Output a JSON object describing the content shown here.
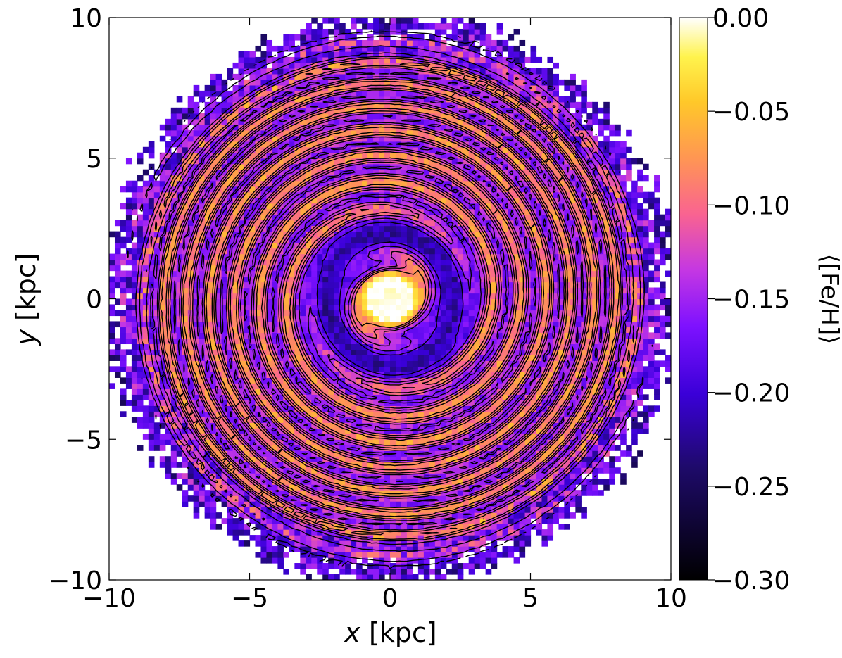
{
  "chart_data": {
    "type": "heatmap",
    "title": "",
    "xlabel_italic": "x",
    "xlabel_unit": " [kpc]",
    "ylabel_italic": "y",
    "ylabel_unit": " [kpc]",
    "xlim": [
      -10,
      10
    ],
    "ylim": [
      -10,
      10
    ],
    "x_ticks": [
      -10,
      -5,
      0,
      5,
      10
    ],
    "y_ticks": [
      -10,
      -5,
      0,
      5,
      10
    ],
    "x_tick_labels": [
      "−10",
      "−5",
      "0",
      "5",
      "10"
    ],
    "y_tick_labels": [
      "−10",
      "−5",
      "0",
      "5",
      "10"
    ],
    "grid": false,
    "colormap": "gnuplot2",
    "colorbar": {
      "label": "⟨[Fe/H]⟩",
      "range": [
        -0.3,
        0.0
      ],
      "ticks": [
        0.0,
        -0.05,
        -0.1,
        -0.15,
        -0.2,
        -0.25,
        -0.3
      ],
      "tick_labels": [
        "0.00",
        "−0.05",
        "−0.10",
        "−0.15",
        "−0.20",
        "−0.25",
        "−0.30"
      ]
    },
    "field": {
      "description_of_pattern": "two-armed spiral in mean [Fe/H]; metal-rich bar at centre, metal-poor ring around bar",
      "disk_radius_kpc": 10,
      "bar": {
        "half_length_kpc": 0.9,
        "half_width_kpc": 0.45,
        "angle_deg": 80,
        "value": 0.0
      },
      "inner_ring": {
        "radius_kpc": 2.3,
        "width_kpc": 0.6,
        "value": -0.22
      },
      "arms": {
        "count": 2,
        "pitch_factor": 0.19,
        "base_value": -0.12,
        "amplitude": 0.045
      },
      "outer_edge": {
        "start_kpc": 8.3,
        "edge_value": -0.21
      }
    },
    "contours": {
      "color": "#000000",
      "levels": [
        -0.19,
        -0.16,
        -0.13,
        -0.11,
        -0.09
      ]
    }
  }
}
